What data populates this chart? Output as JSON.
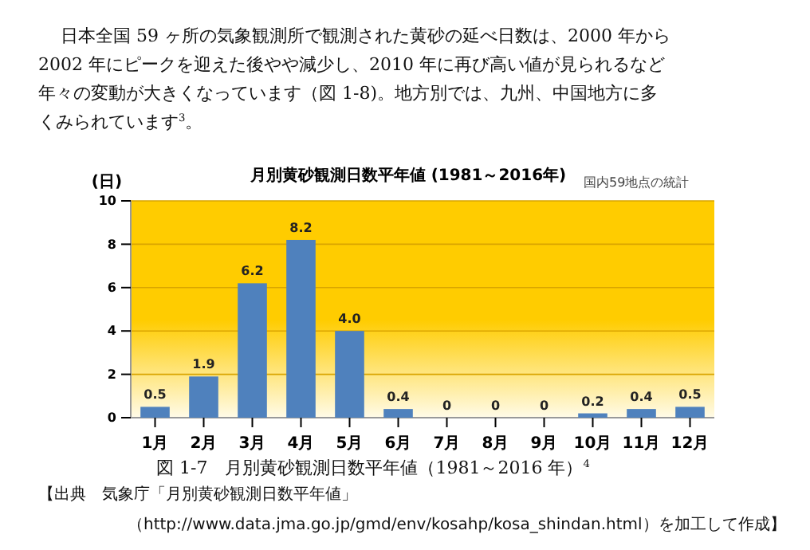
{
  "chart_data": {
    "type": "bar",
    "title": "月別黄砂観測日数平年値 (1981～2016年)",
    "ylabel": "(日)",
    "categories": [
      "1月",
      "2月",
      "3月",
      "4月",
      "5月",
      "6月",
      "7月",
      "8月",
      "9月",
      "10月",
      "11月",
      "12月"
    ],
    "values": [
      0.5,
      1.9,
      6.2,
      8.2,
      4.0,
      0.4,
      0,
      0,
      0,
      0.2,
      0.4,
      0.5
    ],
    "value_labels": [
      "0.5",
      "1.9",
      "6.2",
      "8.2",
      "4.0",
      "0.4",
      "0",
      "0",
      "0",
      "0.2",
      "0.4",
      "0.5"
    ],
    "color": "#4f81bd",
    "ylim": [
      0,
      10
    ],
    "yticks": [
      0,
      2,
      4,
      6,
      8,
      10
    ],
    "grid": "y",
    "annotations": [
      "日本全国 59 ヶ所の気象観測所で観測された黄砂の延べ日数は、2000 年から",
      "2002 年にピークを迎えた後やや減少し、2010 年に再び高い値が見られるなど",
      "年々の変動が大きくなっています（図 1-8)。地方別では、九州、中国地方に多",
      "くみられています$^{3}$。",
      "国内59地点の統計",
      "図 1-7　月別黄砂観測日数平年値（1981～2016 年）$^{4}$",
      "【出典　気象庁「月別黄砂観測日数平年値」",
      "（http://www.data.jma.go.jp/gmd/env/kosahp/kosa_shindan.html）を加工して作成】"
    ]
  }
}
